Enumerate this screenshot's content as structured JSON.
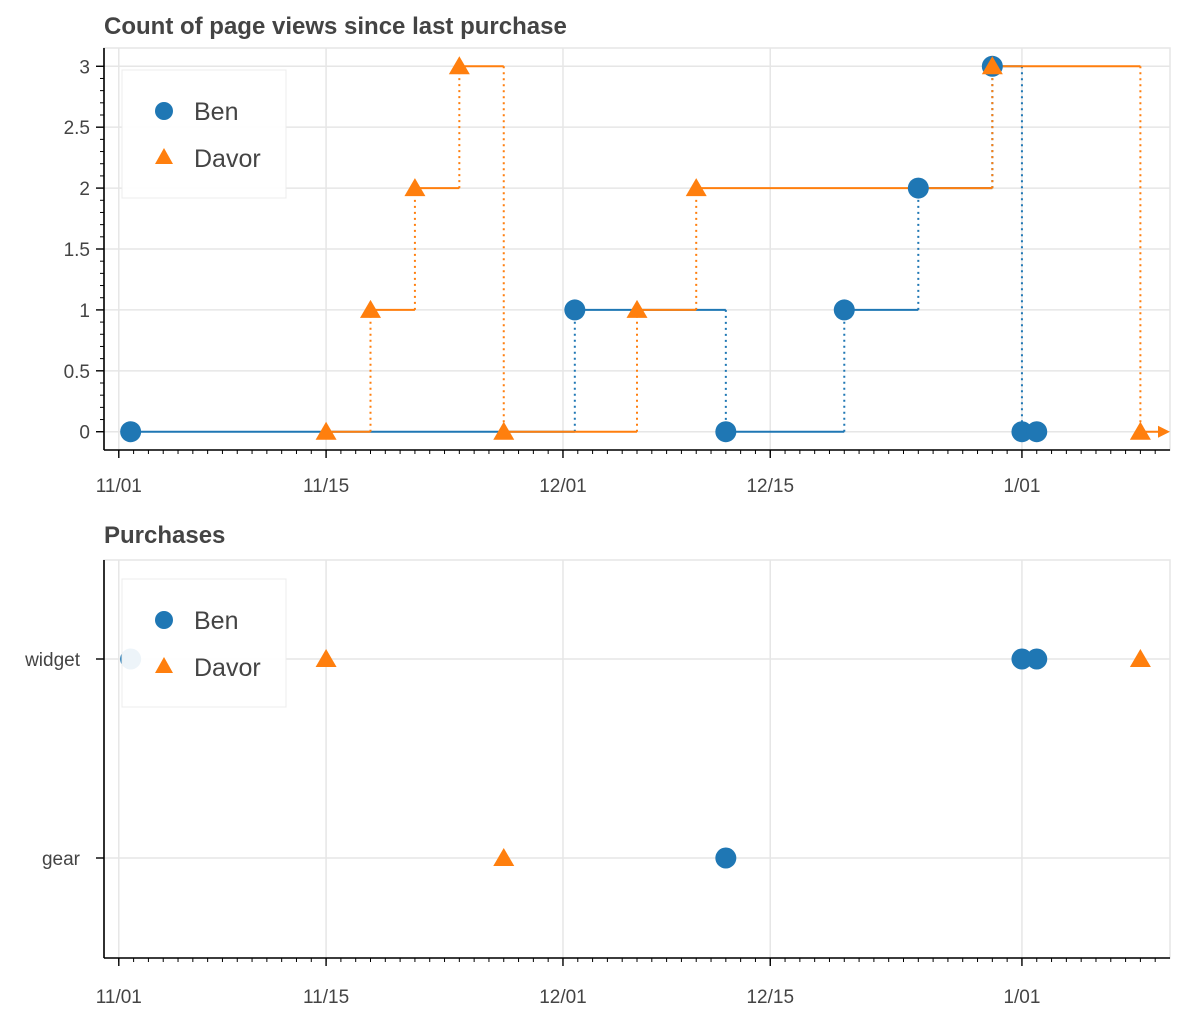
{
  "colors": {
    "ben": "#1f77b4",
    "davor": "#ff7f0e",
    "grid": "#e6e6e6",
    "text": "#444444"
  },
  "chart_data": [
    {
      "type": "line",
      "title": "Count of page views since last purchase",
      "xlabel": "",
      "ylabel": "",
      "x_unit": "days since 11/01",
      "x_ticks": [
        {
          "value": 0,
          "label": "11/01"
        },
        {
          "value": 14,
          "label": "11/15"
        },
        {
          "value": 30,
          "label": "12/01"
        },
        {
          "value": 44,
          "label": "12/15"
        },
        {
          "value": 61,
          "label": "1/01"
        }
      ],
      "xlim": [
        -1,
        71
      ],
      "ylim": [
        -0.15,
        3.15
      ],
      "y_ticks": [
        {
          "value": 0,
          "label": "0"
        },
        {
          "value": 0.5,
          "label": "0.5"
        },
        {
          "value": 1,
          "label": "1"
        },
        {
          "value": 1.5,
          "label": "1.5"
        },
        {
          "value": 2,
          "label": "2"
        },
        {
          "value": 2.5,
          "label": "2.5"
        },
        {
          "value": 3,
          "label": "3"
        }
      ],
      "legend": {
        "position": "top-left",
        "entries": [
          "Ben",
          "Davor"
        ]
      },
      "series": [
        {
          "name": "Ben",
          "marker": "circle",
          "color": "#1f77b4",
          "points": [
            [
              0.8,
              0
            ],
            [
              30.8,
              1
            ],
            [
              41,
              0
            ],
            [
              49,
              1
            ],
            [
              54,
              2
            ],
            [
              59,
              3
            ],
            [
              61,
              0
            ],
            [
              62,
              0
            ]
          ]
        },
        {
          "name": "Davor",
          "marker": "triangle",
          "color": "#ff7f0e",
          "points": [
            [
              14,
              0
            ],
            [
              17,
              1
            ],
            [
              20,
              2
            ],
            [
              23,
              3
            ],
            [
              26,
              0
            ],
            [
              35,
              1
            ],
            [
              39,
              2
            ],
            [
              59,
              3
            ],
            [
              69,
              0
            ]
          ],
          "arrow_end": true
        }
      ]
    },
    {
      "type": "scatter",
      "title": "Purchases",
      "xlabel": "",
      "ylabel": "",
      "x_unit": "days since 11/01",
      "x_ticks": [
        {
          "value": 0,
          "label": "11/01"
        },
        {
          "value": 14,
          "label": "11/15"
        },
        {
          "value": 30,
          "label": "12/01"
        },
        {
          "value": 44,
          "label": "12/15"
        },
        {
          "value": 61,
          "label": "1/01"
        }
      ],
      "xlim": [
        -1,
        71
      ],
      "categories": [
        "widget",
        "gear"
      ],
      "legend": {
        "position": "top-left",
        "entries": [
          "Ben",
          "Davor"
        ]
      },
      "series": [
        {
          "name": "Ben",
          "marker": "circle",
          "color": "#1f77b4",
          "points": [
            [
              0.8,
              "widget"
            ],
            [
              61,
              "widget"
            ],
            [
              62,
              "widget"
            ],
            [
              41,
              "gear"
            ]
          ]
        },
        {
          "name": "Davor",
          "marker": "triangle",
          "color": "#ff7f0e",
          "points": [
            [
              14,
              "widget"
            ],
            [
              69,
              "widget"
            ],
            [
              26,
              "gear"
            ]
          ]
        }
      ]
    }
  ]
}
